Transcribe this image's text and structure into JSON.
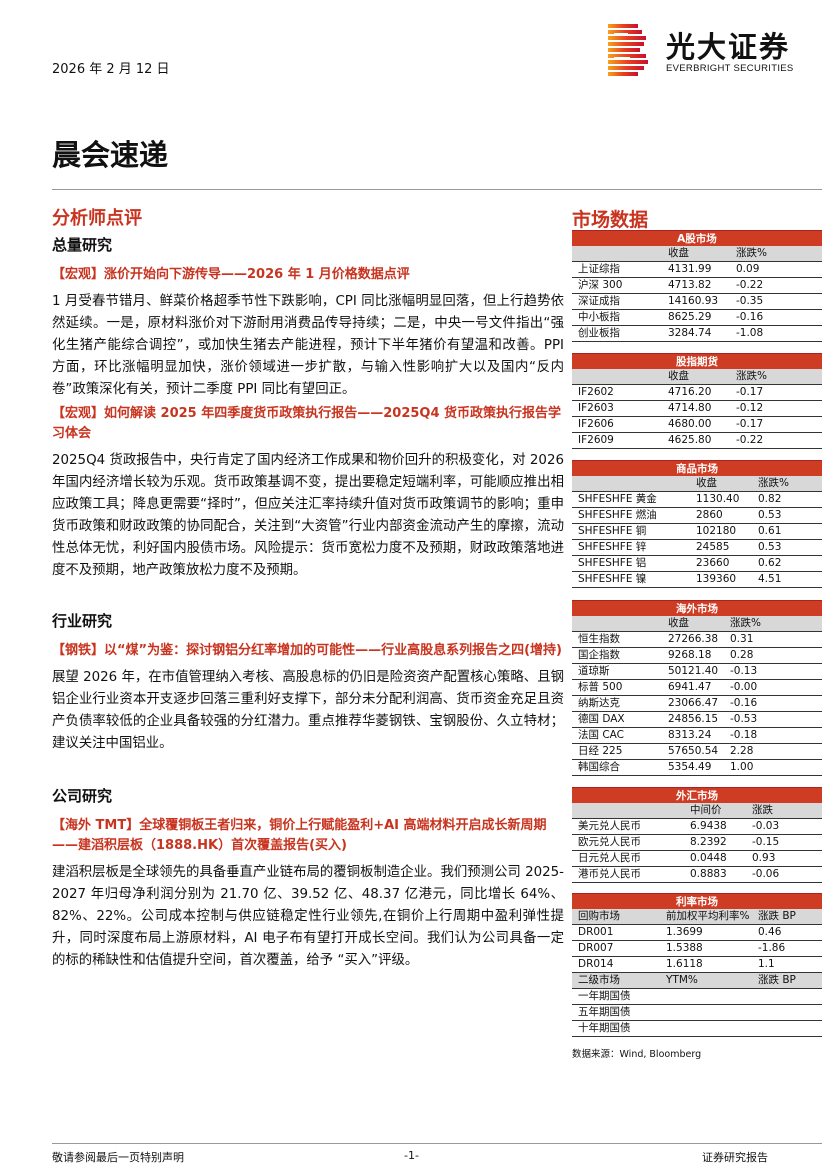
{
  "header": {
    "date": "2026 年 2 月 12 日",
    "logo_cn": "光大证券",
    "logo_en": "EVERBRIGHT SECURITIES",
    "title": "晨会速递",
    "brand_color": "#cf3c24"
  },
  "left": {
    "section": "分析师点评",
    "groups": [
      {
        "heading": "总量研究",
        "reports": [
          {
            "title": "【宏观】涨价开始向下游传导——2026 年 1 月价格数据点评",
            "body": "1 月受春节错月、鲜菜价格超季节性下跌影响，CPI 同比涨幅明显回落，但上行趋势依然延续。一是，原材料涨价对下游耐用消费品传导持续；二是，中央一号文件指出“强化生猪产能综合调控”，或加快生猪去产能进程，预计下半年猪价有望温和改善。PPI 方面，环比涨幅明显加快，涨价领域进一步扩散，与输入性影响扩大以及国内“反内卷”政策深化有关，预计二季度 PPI 同比有望回正。"
          },
          {
            "title": "【宏观】如何解读 2025 年四季度货币政策执行报告——2025Q4 货币政策执行报告学习体会",
            "body": "2025Q4 货政报告中，央行肯定了国内经济工作成果和物价回升的积极变化，对 2026 年国内经济增长较为乐观。货币政策基调不变，提出要稳定短端利率，可能顺应推出相应政策工具；降息更需要“择时”，但应关注汇率持续升值对货币政策调节的影响；重申货币政策和财政政策的协同配合，关注到“大资管”行业内部资金流动产生的摩擦，流动性总体无忧，利好国内股债市场。风险提示：货币宽松力度不及预期，财政政策落地进度不及预期，地产政策放松力度不及预期。"
          }
        ]
      },
      {
        "heading": "行业研究",
        "reports": [
          {
            "title": "【钢铁】以“煤”为鉴：探讨钢铝分红率增加的可能性——行业高股息系列报告之四(增持)",
            "body": "展望 2026 年，在市值管理纳入考核、高股息标的仍旧是险资资产配置核心策略、且钢铝企业行业资本开支逐步回落三重利好支撑下，部分未分配利润高、货币资金充足且资产负债率较低的企业具备较强的分红潜力。重点推荐华菱钢铁、宝钢股份、久立特材；建议关注中国铝业。"
          }
        ]
      },
      {
        "heading": "公司研究",
        "reports": [
          {
            "title": "【海外 TMT】全球覆铜板王者归来，铜价上行赋能盈利+AI 高端材料开启成长新周期——建滔积层板（1888.HK）首次覆盖报告(买入)",
            "body": "建滔积层板是全球领先的具备垂直产业链布局的覆铜板制造企业。我们预测公司 2025-2027 年归母净利润分别为 21.70 亿、39.52 亿、48.37 亿港元，同比增长 64%、82%、22%。公司成本控制与供应链稳定性行业领先,在铜价上行周期中盈利弹性提升，同时深度布局上游原材料，AI 电子布有望打开成长空间。我们认为公司具备一定的标的稀缺性和估值提升空间，首次覆盖，给予 “买入”评级。"
          }
        ]
      }
    ]
  },
  "market": {
    "title": "市场数据",
    "tables": [
      {
        "name": "A股市场",
        "cols": [
          "",
          "收盘",
          "涨跌%"
        ],
        "rows": [
          [
            "上证综指",
            "4131.99",
            "0.09"
          ],
          [
            "沪深 300",
            "4713.82",
            "-0.22"
          ],
          [
            "深证成指",
            "14160.93",
            "-0.35"
          ],
          [
            "中小板指",
            "8625.29",
            "-0.16"
          ],
          [
            "创业板指",
            "3284.74",
            "-1.08"
          ]
        ]
      },
      {
        "name": "股指期货",
        "cols": [
          "",
          "收盘",
          "涨跌%"
        ],
        "rows": [
          [
            "IF2602",
            "4716.20",
            "-0.17"
          ],
          [
            "IF2603",
            "4714.80",
            "-0.12"
          ],
          [
            "IF2606",
            "4680.00",
            "-0.17"
          ],
          [
            "IF2609",
            "4625.80",
            "-0.22"
          ]
        ]
      },
      {
        "name": "商品市场",
        "cols": [
          "",
          "收盘",
          "涨跌%"
        ],
        "rows": [
          [
            "SHFESHFE 黄金",
            "1130.40",
            "0.82"
          ],
          [
            "SHFESHFE 燃油",
            "2860",
            "0.53"
          ],
          [
            "SHFESHFE 铜",
            "102180",
            "0.61"
          ],
          [
            "SHFESHFE 锌",
            "24585",
            "0.53"
          ],
          [
            "SHFESHFE 铝",
            "23660",
            "0.62"
          ],
          [
            "SHFESHFE 镍",
            "139360",
            "4.51"
          ]
        ]
      },
      {
        "name": "海外市场",
        "cols": [
          "",
          "收盘",
          "涨跌%"
        ],
        "rows": [
          [
            "恒生指数",
            "27266.38",
            "0.31"
          ],
          [
            "国企指数",
            "9268.18",
            "0.28"
          ],
          [
            "道琼斯",
            "50121.40",
            "-0.13"
          ],
          [
            "标普 500",
            "6941.47",
            "-0.00"
          ],
          [
            "纳斯达克",
            "23066.47",
            "-0.16"
          ],
          [
            "德国 DAX",
            "24856.15",
            "-0.53"
          ],
          [
            "法国 CAC",
            "8313.24",
            "-0.18"
          ],
          [
            "日经 225",
            "57650.54",
            "2.28"
          ],
          [
            "韩国综合",
            "5354.49",
            "1.00"
          ]
        ]
      },
      {
        "name": "外汇市场",
        "cols": [
          "",
          "中间价",
          "涨跌"
        ],
        "rows": [
          [
            "美元兑人民币",
            "6.9438",
            "-0.03"
          ],
          [
            "欧元兑人民币",
            "8.2392",
            "-0.15"
          ],
          [
            "日元兑人民币",
            "0.0448",
            "0.93"
          ],
          [
            "港币兑人民币",
            "0.8883",
            "-0.06"
          ]
        ]
      },
      {
        "name": "利率市场",
        "cols": [
          "回购市场",
          "前加权平均利率%",
          "涨跌 BP"
        ],
        "rows": [
          [
            "DR001",
            "1.3699",
            "0.46"
          ],
          [
            "DR007",
            "1.5388",
            "-1.86"
          ],
          [
            "DR014",
            "1.6118",
            "1.1"
          ]
        ],
        "cols2": [
          "二级市场",
          "YTM%",
          "涨跌 BP"
        ],
        "rows2": [
          [
            "一年期国债",
            "",
            ""
          ],
          [
            "五年期国债",
            "",
            ""
          ],
          [
            "十年期国债",
            "",
            ""
          ]
        ]
      }
    ],
    "source": "数据来源：Wind, Bloomberg"
  },
  "footer": {
    "disclaimer": "敬请参阅最后一页特别声明",
    "page": "-1-",
    "type": "证券研究报告"
  }
}
